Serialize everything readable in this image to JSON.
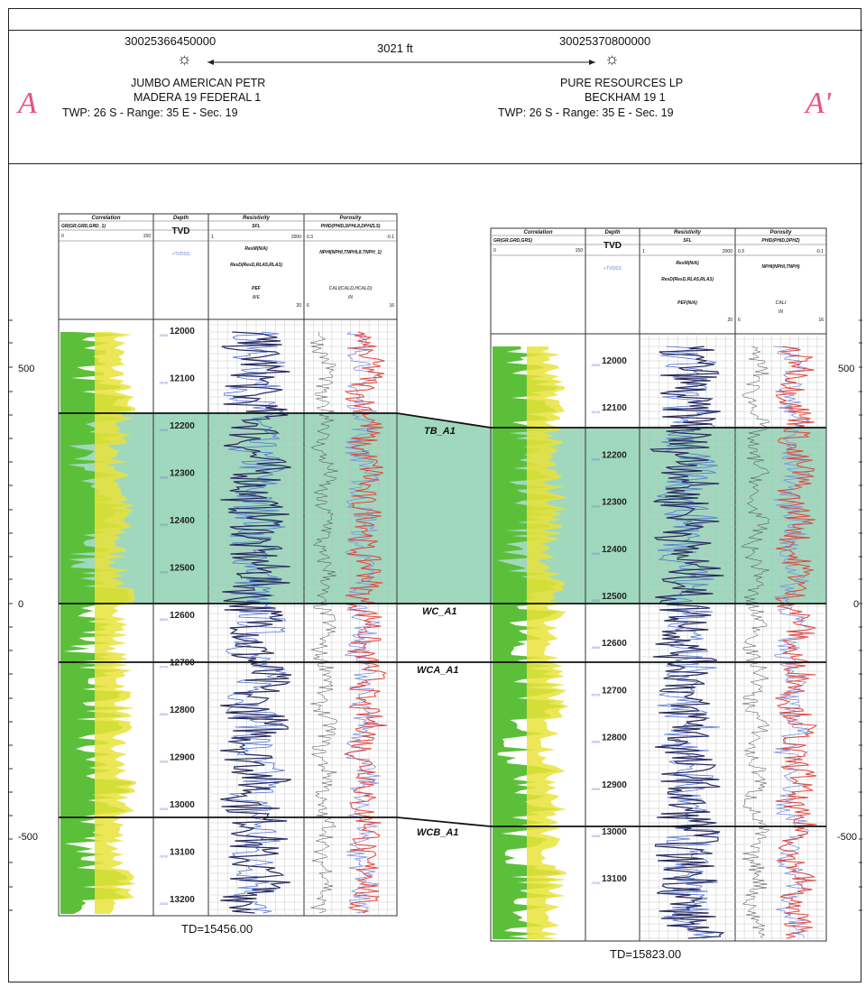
{
  "header": {
    "distance": "3021 ft",
    "endpoint_left": "A",
    "endpoint_right": "A'",
    "left_well": {
      "api": "30025366450000",
      "operator": "JUMBO AMERICAN PETR",
      "name": "MADERA 19 FEDERAL 1",
      "location": "TWP: 26  S - Range: 35 E - Sec. 19"
    },
    "right_well": {
      "api": "30025370800000",
      "operator": "PURE RESOURCES LP",
      "name": "BECKHAM 19 1",
      "location": "TWP: 26  S - Range: 35 E - Sec. 19"
    }
  },
  "scale_ticks": [
    "500",
    "0",
    "-500"
  ],
  "track_headers": {
    "correlation": "Correlation",
    "depth": "Depth",
    "resistivity": "Resistivity",
    "porosity": "Porosity",
    "tvd": "TVD",
    "tvdss": "+TVDSS",
    "left": {
      "gr_curve": "GR(GR,GRD,GRD_1)",
      "gr_min": "0",
      "gr_max": "150",
      "sfl": "SFL",
      "rmin": "1",
      "rmax": "2000",
      "resm": "ResM(N/A)",
      "resd": "ResD(ResD,RLA5,RLA3)",
      "pef": "PEF",
      "pef_unit": "B/E",
      "pef_max": "20",
      "phid": "PHID(PHID,DPHL8,DPHZL5)",
      "phi_min": "0.3",
      "phi_max": "-0.1",
      "nphi": "NPHI(NPHI,TNPHL8,TNPH_1)",
      "cali": "CALI(CALD,HCALD)",
      "cali_unit": "IN",
      "cali_min": "6",
      "cali_max": "16"
    },
    "right": {
      "gr_curve": "GR(GR,GRD,GRS)",
      "gr_min": "0",
      "gr_max": "150",
      "sfl": "SFL",
      "rmin": "1",
      "rmax": "2000",
      "resm": "ResM(N/A)",
      "resd": "ResD(ResD,RLA5,RLA3)",
      "pef": "PEF(N/A)",
      "pef_max": "20",
      "phid": "PHID(PHID,DPHZ)",
      "phi_min": "0.3",
      "phi_max": "-0.1",
      "nphi": "NPHI(NPHI,TNPH)",
      "cali": "CALI",
      "cali_unit": "IN",
      "cali_min": "6",
      "cali_max": "16"
    }
  },
  "tops": [
    "TB_A1",
    "WC_A1",
    "WCA_A1",
    "WCB_A1"
  ],
  "left_depths": [
    "12000",
    "12100",
    "12200",
    "12300",
    "12400",
    "12500",
    "12600",
    "12700",
    "12800",
    "12900",
    "13000",
    "13100",
    "13200"
  ],
  "right_depths": [
    "12000",
    "12100",
    "12200",
    "12300",
    "12400",
    "12500",
    "12600",
    "12700",
    "12800",
    "12900",
    "13000",
    "13100"
  ],
  "td_left": "TD=15456.00",
  "td_right": "TD=15823.00",
  "colors": {
    "zone": "#8fd1b3",
    "gr_green": "#5cbf3a",
    "gr_yellow": "#e9e33a",
    "res_dark": "#2a2a5e",
    "res_blue": "#4a6fd1",
    "por_red": "#e0443a",
    "por_blue": "#7a8ee0",
    "endpoint": "#e8508a",
    "tvdss": "#6a7fd8"
  }
}
